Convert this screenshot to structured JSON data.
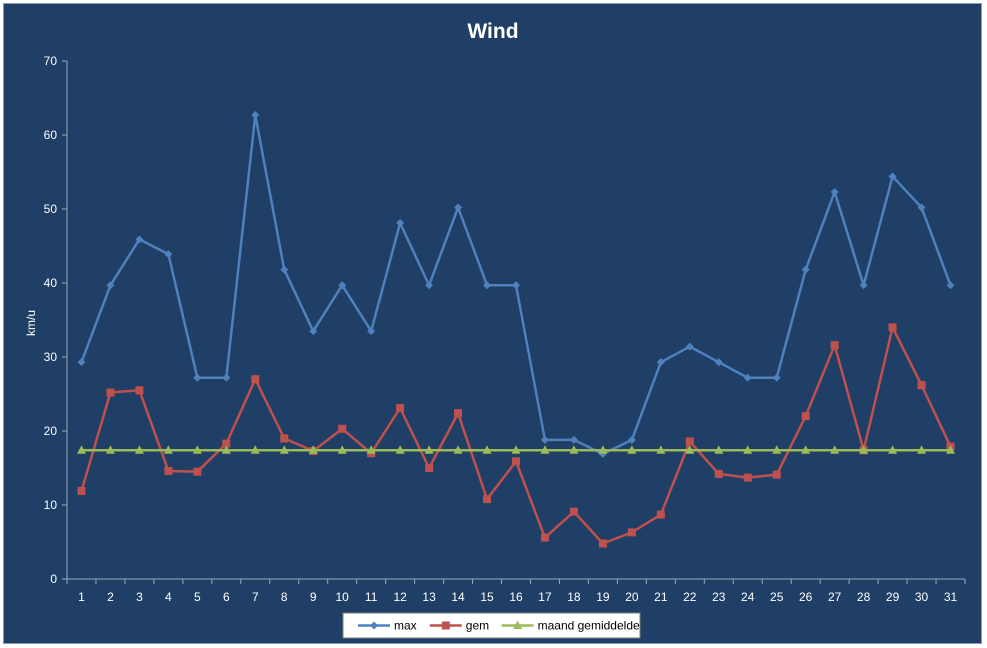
{
  "chart_data": {
    "type": "line",
    "title": "Wind",
    "xlabel": "",
    "ylabel": "km/u",
    "ylim": [
      0,
      70
    ],
    "yticks": [
      0,
      10,
      20,
      30,
      40,
      50,
      60,
      70
    ],
    "categories": [
      "1",
      "2",
      "3",
      "4",
      "5",
      "6",
      "7",
      "8",
      "9",
      "10",
      "11",
      "12",
      "13",
      "14",
      "15",
      "16",
      "17",
      "18",
      "19",
      "20",
      "21",
      "22",
      "23",
      "24",
      "25",
      "26",
      "27",
      "28",
      "29",
      "30",
      "31"
    ],
    "grid": false,
    "legend": "bottom",
    "series": [
      {
        "name": "max",
        "color": "#4f81bd",
        "marker": "diamond",
        "values": [
          29.3,
          39.7,
          45.9,
          43.9,
          27.2,
          27.2,
          62.7,
          41.8,
          33.5,
          39.7,
          33.5,
          48.1,
          39.7,
          50.2,
          39.7,
          39.7,
          18.8,
          18.8,
          16.9,
          18.8,
          29.3,
          31.4,
          29.3,
          27.2,
          27.2,
          41.8,
          52.3,
          39.7,
          54.4,
          50.2,
          39.7
        ]
      },
      {
        "name": "gem",
        "color": "#c0504d",
        "marker": "square",
        "values": [
          11.9,
          25.2,
          25.5,
          14.6,
          14.5,
          18.3,
          27.0,
          19.0,
          17.3,
          20.3,
          17.0,
          23.1,
          15.0,
          22.4,
          10.8,
          15.9,
          5.6,
          9.1,
          4.8,
          6.3,
          8.7,
          18.6,
          14.2,
          13.7,
          14.1,
          22.0,
          31.6,
          17.4,
          34.0,
          26.2,
          17.9
        ]
      },
      {
        "name": "maand gemiddelde",
        "color": "#9bbb59",
        "marker": "triangle",
        "values": [
          17.4,
          17.4,
          17.4,
          17.4,
          17.4,
          17.4,
          17.4,
          17.4,
          17.4,
          17.4,
          17.4,
          17.4,
          17.4,
          17.4,
          17.4,
          17.4,
          17.4,
          17.4,
          17.4,
          17.4,
          17.4,
          17.4,
          17.4,
          17.4,
          17.4,
          17.4,
          17.4,
          17.4,
          17.4,
          17.4,
          17.4
        ]
      }
    ]
  }
}
